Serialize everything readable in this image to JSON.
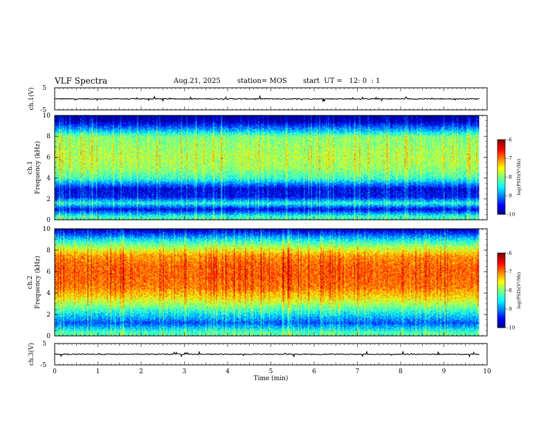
{
  "header": {
    "title": "VLF Spectra",
    "date": "Aug.21, 2025",
    "station": "station= MOS",
    "start": "start  UT =   12: 0  : 1"
  },
  "chart_data": [
    {
      "type": "line",
      "name": "ch1-waveform",
      "ylabel": "ch.1(V)",
      "ylim": [
        -5,
        5
      ],
      "yticks": [
        "5",
        "-5"
      ],
      "xlim": [
        0,
        9.82
      ],
      "baseline": 0,
      "description_of_values": "near-flat trace at ~0 V with small spikes"
    },
    {
      "type": "heatmap",
      "name": "ch1-spectrogram",
      "ylabel": "Frequency (kHz)",
      "panel_label": "ch.1",
      "ylim": [
        0,
        10
      ],
      "yticks": [
        "0",
        "2",
        "4",
        "6",
        "8",
        "10"
      ],
      "xlim": [
        0,
        9.82
      ],
      "colorbar": {
        "label": "log(PSD)(V²/Hz)",
        "range": [
          -10,
          -6
        ],
        "ticks": [
          "-6",
          "-7",
          "-8",
          "-9",
          "-10"
        ]
      },
      "profile_khz": [
        0.3,
        1.0,
        1.6,
        2.2,
        3.0,
        4.0,
        5.0,
        6.0,
        7.0,
        8.0,
        8.8,
        9.5,
        10.0
      ],
      "profile_logpsd": [
        -8.3,
        -9.6,
        -8.4,
        -9.5,
        -9.6,
        -8.3,
        -7.9,
        -7.8,
        -7.9,
        -8.0,
        -9.0,
        -9.8,
        -9.9
      ]
    },
    {
      "type": "heatmap",
      "name": "ch2-spectrogram",
      "ylabel": "Frequency (kHz)",
      "panel_label": "ch.2",
      "ylim": [
        0,
        10
      ],
      "yticks": [
        "0",
        "2",
        "4",
        "6",
        "8",
        "10"
      ],
      "xlim": [
        0,
        9.82
      ],
      "colorbar": {
        "label": "log(PSD)(V²/Hz)",
        "range": [
          -10,
          -6
        ],
        "ticks": [
          "-6",
          "-7",
          "-8",
          "-9",
          "-10"
        ]
      },
      "profile_khz": [
        0.3,
        1.2,
        2.0,
        2.8,
        3.5,
        4.5,
        5.5,
        6.5,
        7.5,
        8.3,
        9.0,
        9.6,
        10.0
      ],
      "profile_logpsd": [
        -8.2,
        -9.2,
        -8.6,
        -8.0,
        -7.5,
        -7.0,
        -6.9,
        -6.9,
        -7.1,
        -7.8,
        -8.5,
        -9.3,
        -9.8
      ]
    },
    {
      "type": "line",
      "name": "ch3-waveform",
      "ylabel": "ch.3(V)",
      "ylim": [
        -5,
        5
      ],
      "yticks": [
        "5",
        "-5"
      ],
      "xlim": [
        0,
        9.82
      ],
      "baseline": 0,
      "description_of_values": "near-flat trace at ~0 V with small spikes"
    }
  ],
  "xaxis": {
    "label": "Time  (min)",
    "ticks": [
      "0",
      "1",
      "2",
      "3",
      "4",
      "5",
      "6",
      "7",
      "8",
      "9",
      "10"
    ],
    "range": [
      0,
      10
    ]
  }
}
